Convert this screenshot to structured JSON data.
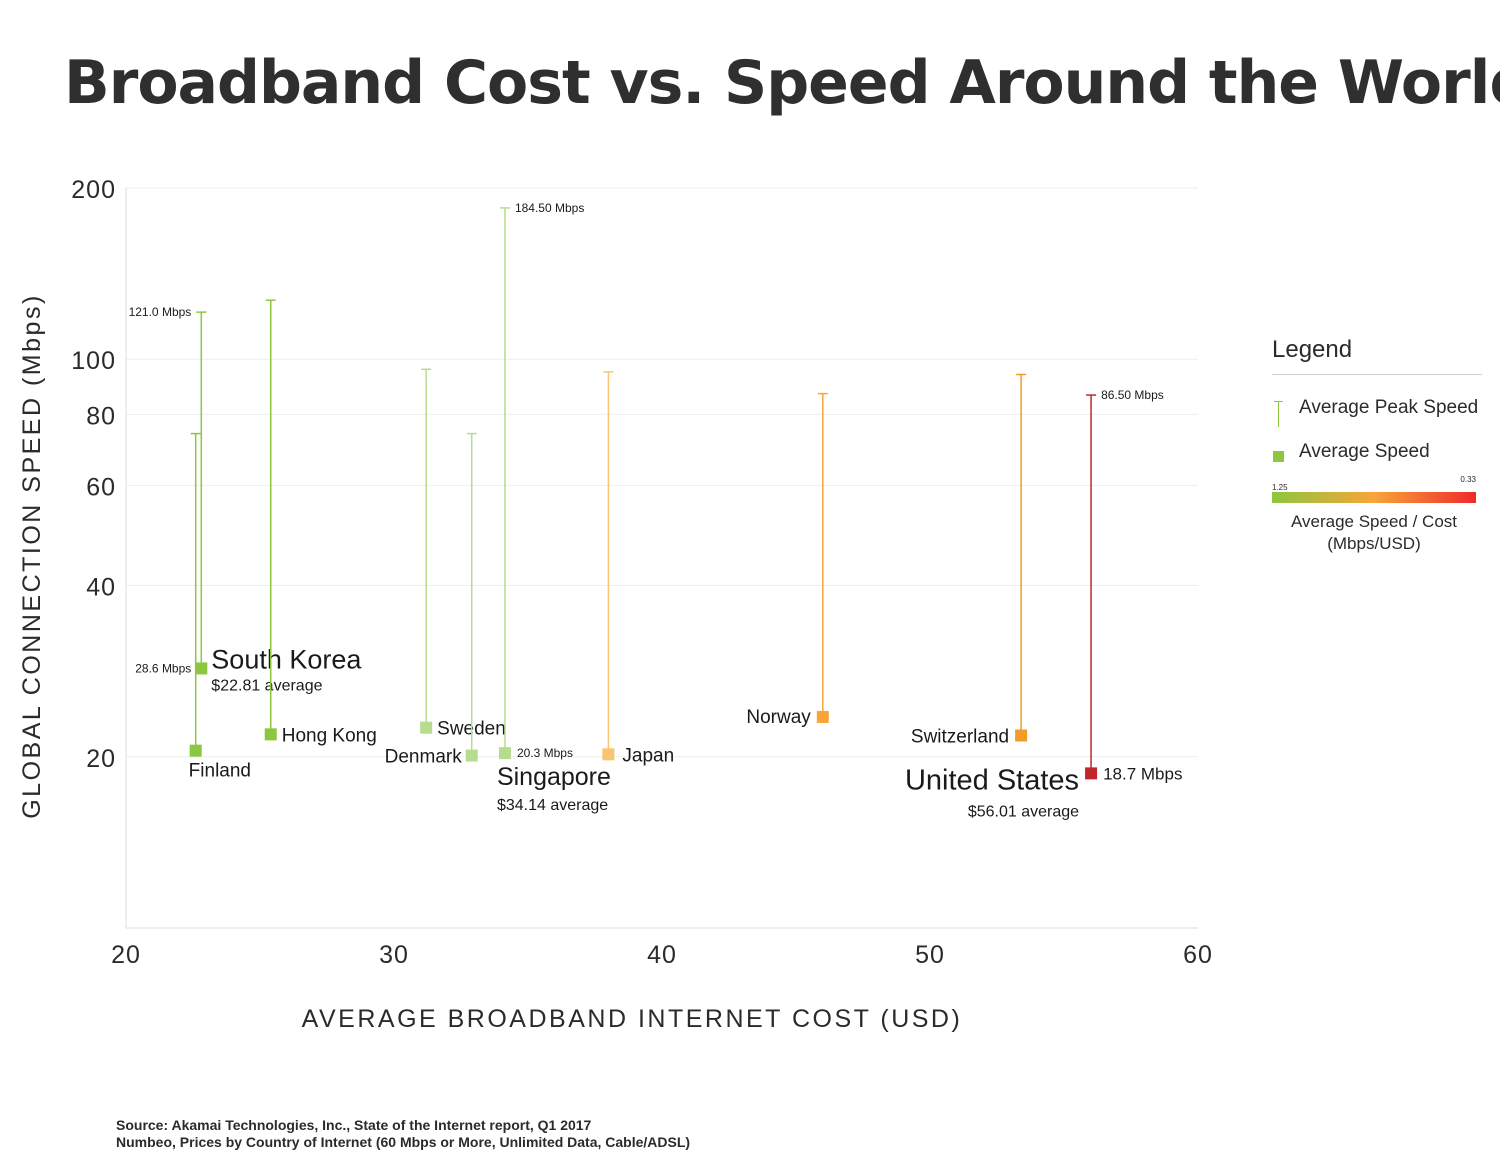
{
  "title": "Broadband Cost vs. Speed Around the World",
  "source": {
    "line1": "Source: Akamai Technologies, Inc., State of the Internet report, Q1 2017",
    "line2": "Numbeo, Prices by Country of Internet (60 Mbps or More, Unlimited Data, Cable/ADSL)"
  },
  "legend": {
    "title": "Legend",
    "peak_label": "Average Peak Speed",
    "avg_label": "Average Speed",
    "gradient_min": "1.25",
    "gradient_max": "0.33",
    "gradient_label_line1": "Average Speed / Cost",
    "gradient_label_line2": "(Mbps/USD)"
  },
  "chart_data": {
    "type": "scatter",
    "xlabel": "AVERAGE BROADBAND INTERNET COST (USD)",
    "ylabel": "GLOBAL CONNECTION SPEED (Mbps)",
    "xlim": [
      20,
      60
    ],
    "ylim": [
      10,
      200
    ],
    "yscale": "log",
    "xticks": [
      20,
      30,
      40,
      50,
      60
    ],
    "yticks": [
      20,
      40,
      60,
      80,
      100,
      200
    ],
    "grid": "horizontal",
    "points": [
      {
        "country": "South Korea",
        "cost": 22.81,
        "avg": 28.6,
        "peak": 121.0,
        "color": "#8dc63f",
        "name_label": "South Korea",
        "cost_label": "$22.81 average",
        "avg_label": "28.6 Mbps",
        "peak_label": "121.0 Mbps"
      },
      {
        "country": "Finland",
        "cost": 22.6,
        "avg": 20.5,
        "peak": 74,
        "color": "#8dc63f",
        "name_label": "Finland"
      },
      {
        "country": "Hong Kong",
        "cost": 25.4,
        "avg": 21.9,
        "peak": 127,
        "color": "#8dc63f",
        "name_label": "Hong Kong"
      },
      {
        "country": "Sweden",
        "cost": 31.2,
        "avg": 22.5,
        "peak": 96,
        "color": "#b7dc8e",
        "name_label": "Sweden"
      },
      {
        "country": "Denmark",
        "cost": 32.9,
        "avg": 20.1,
        "peak": 74,
        "color": "#b7dc8e",
        "name_label": "Denmark"
      },
      {
        "country": "Singapore",
        "cost": 34.14,
        "avg": 20.3,
        "peak": 184.5,
        "color": "#b7dc8e",
        "name_label": "Singapore",
        "cost_label": "$34.14 average",
        "avg_label": "20.3 Mbps",
        "peak_label": "184.50 Mbps"
      },
      {
        "country": "Japan",
        "cost": 38.0,
        "avg": 20.2,
        "peak": 95,
        "color": "#fcc472",
        "name_label": "Japan"
      },
      {
        "country": "Norway",
        "cost": 46.0,
        "avg": 23.5,
        "peak": 87,
        "color": "#f7a53a",
        "name_label": "Norway"
      },
      {
        "country": "Switzerland",
        "cost": 53.4,
        "avg": 21.8,
        "peak": 94,
        "color": "#f29b28",
        "name_label": "Switzerland"
      },
      {
        "country": "United States",
        "cost": 56.01,
        "avg": 18.7,
        "peak": 86.5,
        "color": "#c1272d",
        "name_label": "United States",
        "cost_label": "$56.01 average",
        "avg_label": "18.7 Mbps",
        "peak_label": "86.50 Mbps"
      }
    ]
  }
}
